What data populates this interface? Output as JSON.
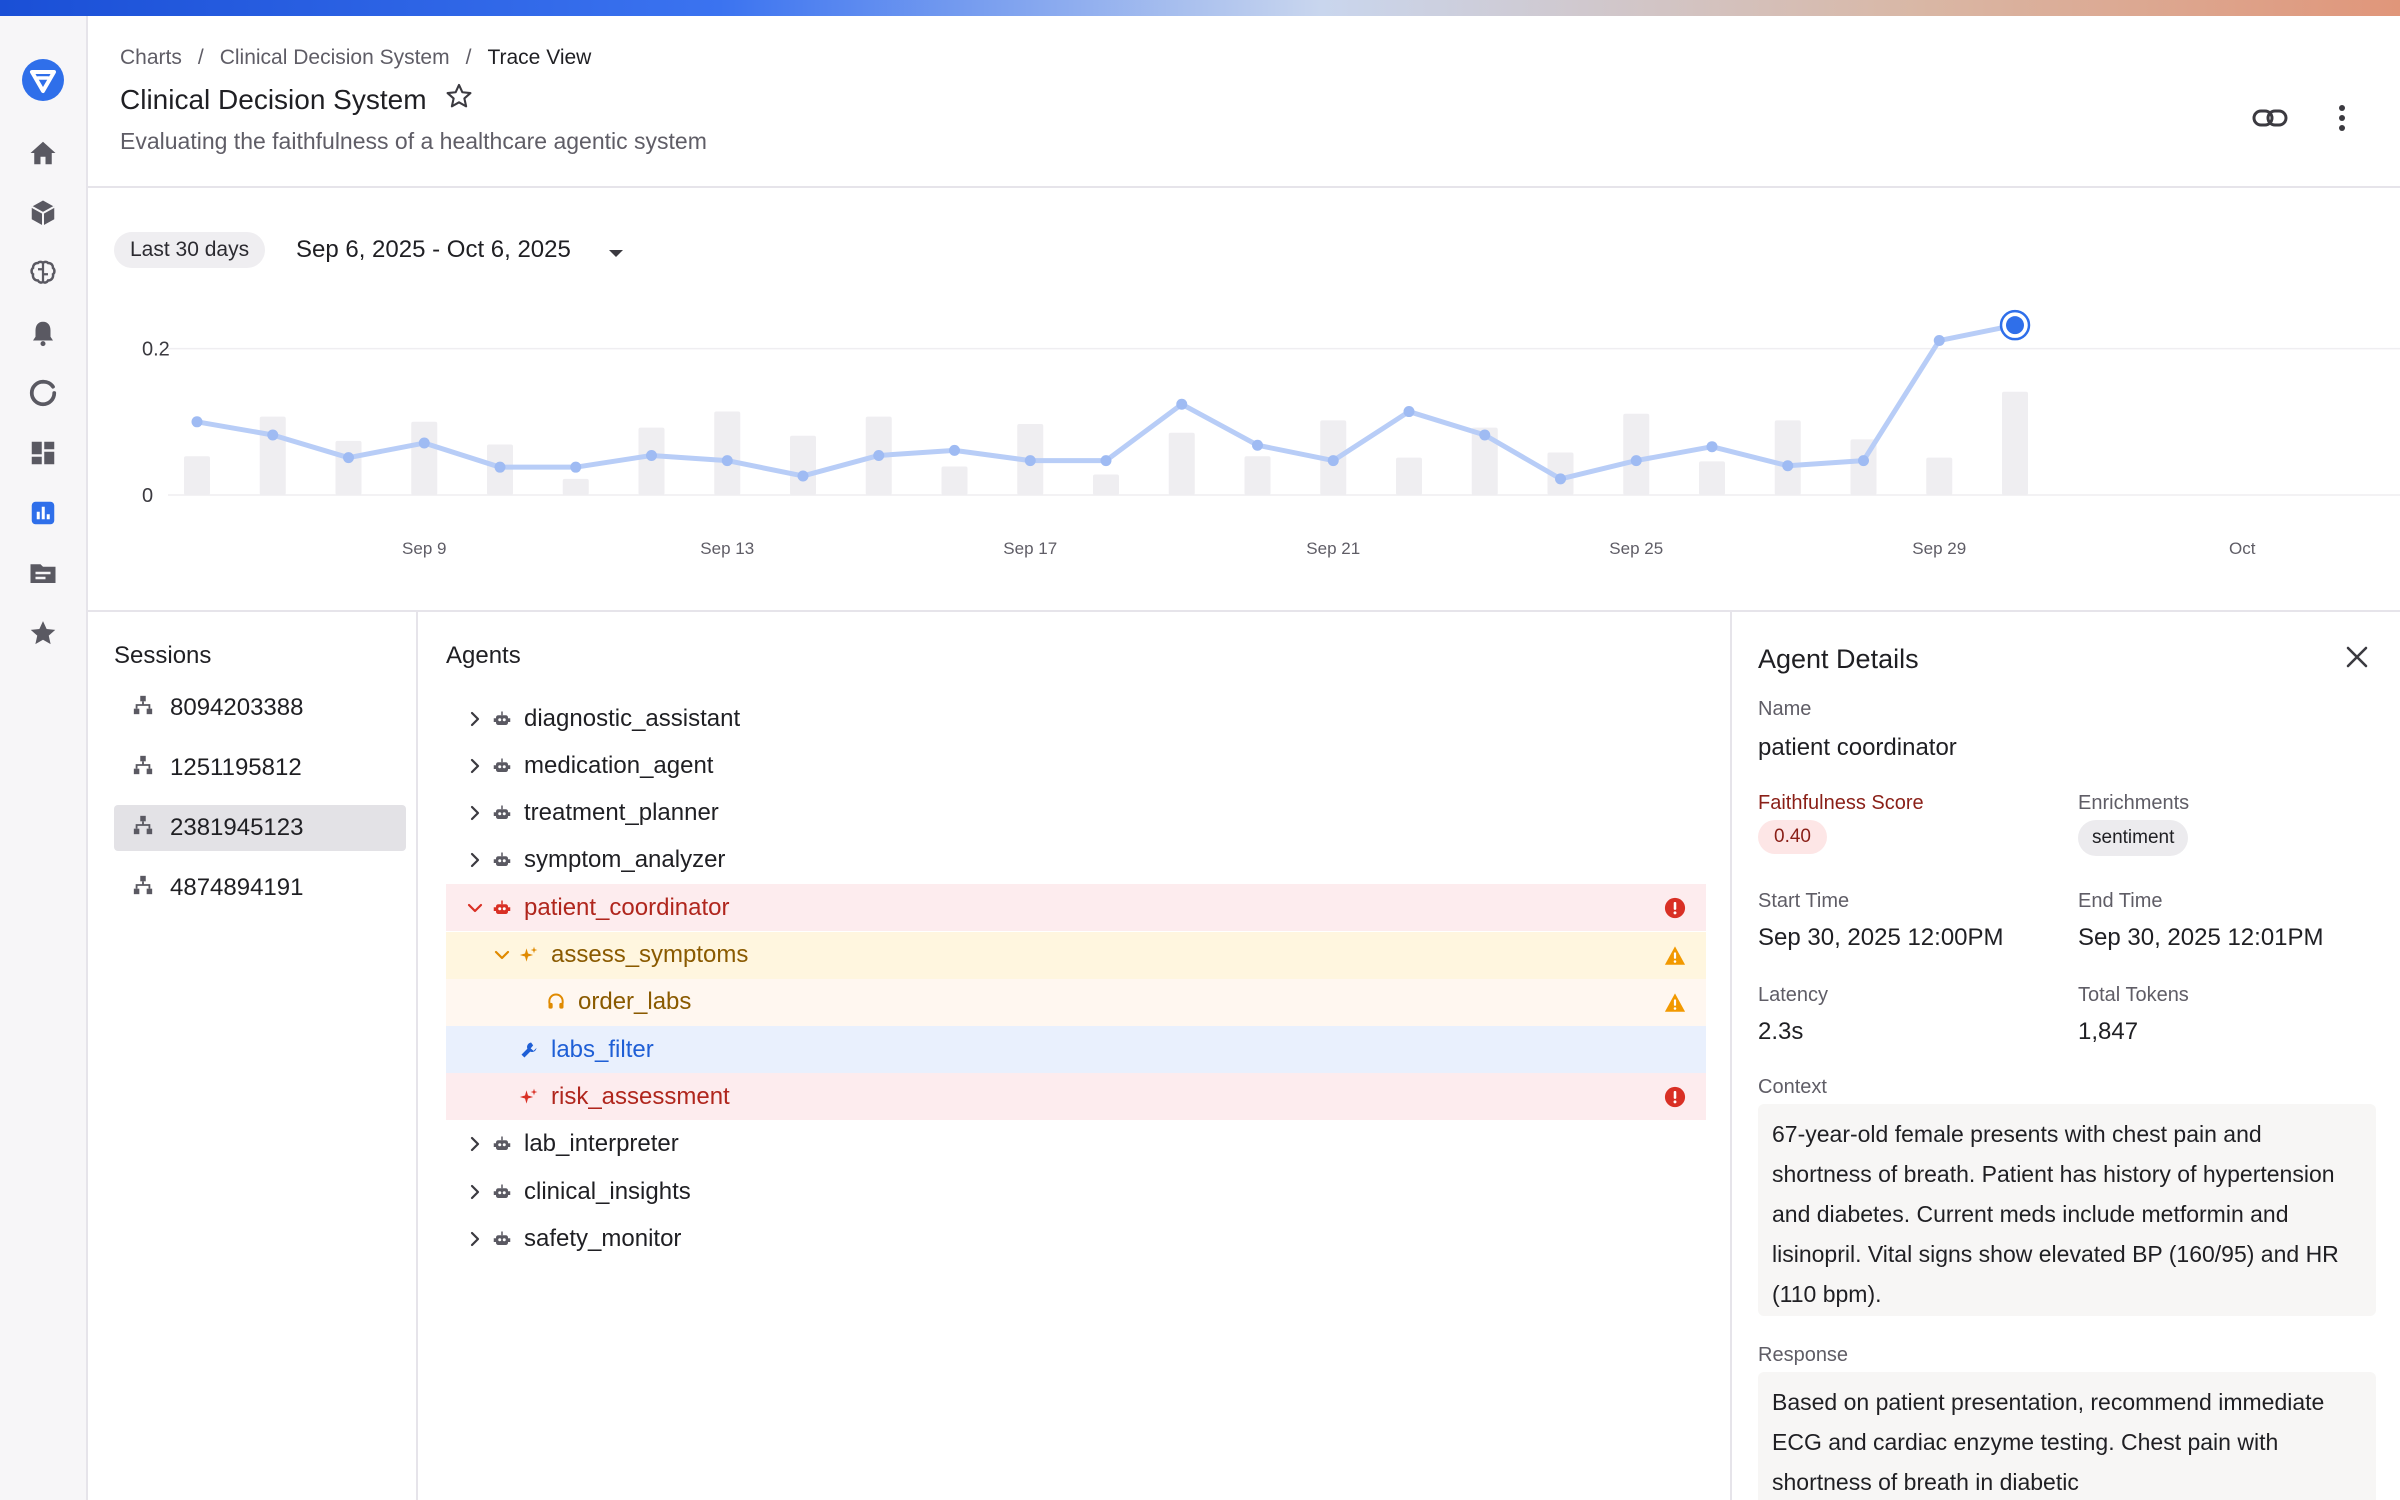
{
  "breadcrumb": {
    "items": [
      "Charts",
      "Clinical Decision System"
    ],
    "current": "Trace View"
  },
  "header": {
    "title": "Clinical Decision System",
    "subtitle": "Evaluating the faithfulness of a healthcare agentic system"
  },
  "nav_icons": [
    "home-icon",
    "cube-icon",
    "brain-icon",
    "bell-icon",
    "refresh-icon",
    "dashboard-icon",
    "chart-icon",
    "folder-icon",
    "star-icon"
  ],
  "date_range": {
    "chip": "Last 30 days",
    "range": "Sep 6, 2025 - Oct 6, 2025"
  },
  "chart_data": {
    "type": "line",
    "x": [
      "Sep 6",
      "Sep 7",
      "Sep 8",
      "Sep 9",
      "Sep 10",
      "Sep 11",
      "Sep 12",
      "Sep 13",
      "Sep 14",
      "Sep 15",
      "Sep 16",
      "Sep 17",
      "Sep 18",
      "Sep 19",
      "Sep 20",
      "Sep 21",
      "Sep 22",
      "Sep 23",
      "Sep 24",
      "Sep 25",
      "Sep 26",
      "Sep 27",
      "Sep 28",
      "Sep 29",
      "Sep 30"
    ],
    "series": [
      {
        "values": [
          0.1,
          0.082,
          0.051,
          0.071,
          0.038,
          0.038,
          0.054,
          0.047,
          0.026,
          0.054,
          0.061,
          0.047,
          0.047,
          0.124,
          0.068,
          0.047,
          0.114,
          0.082,
          0.022,
          0.047,
          0.066,
          0.04,
          0.047,
          0.211,
          0.232
        ]
      },
      {
        "values": [
          0.053,
          0.107,
          0.074,
          0.1,
          0.069,
          0.022,
          0.092,
          0.114,
          0.081,
          0.107,
          0.039,
          0.097,
          0.028,
          0.085,
          0.053,
          0.102,
          0.051,
          0.092,
          0.058,
          0.111,
          0.046,
          0.102,
          0.076,
          0.051,
          0.141
        ]
      }
    ],
    "y_ticks": [
      "0",
      "0.2"
    ],
    "x_ticks": [
      "Sep 9",
      "Sep 13",
      "Sep 17",
      "Sep 21",
      "Sep 25",
      "Sep 29",
      "Oct"
    ],
    "ylim": [
      0,
      0.25
    ],
    "highlight_index": 24,
    "line_color": "#b8cdf7",
    "bar_color": "#efeef1",
    "highlight_color": "#2f6fea",
    "grid": true
  },
  "sessions": {
    "title": "Sessions",
    "items": [
      "8094203388",
      "1251195812",
      "2381945123",
      "4874894191"
    ],
    "selected_index": 2
  },
  "agents": {
    "title": "Agents",
    "rows": [
      {
        "label": "diagnostic_assistant",
        "indent": 0,
        "chevron": "right",
        "icon": "robot-icon",
        "state": "none",
        "status": ""
      },
      {
        "label": "medication_agent",
        "indent": 0,
        "chevron": "right",
        "icon": "robot-icon",
        "state": "none",
        "status": ""
      },
      {
        "label": "treatment_planner",
        "indent": 0,
        "chevron": "right",
        "icon": "robot-icon",
        "state": "none",
        "status": ""
      },
      {
        "label": "symptom_analyzer",
        "indent": 0,
        "chevron": "right",
        "icon": "robot-icon",
        "state": "none",
        "status": ""
      },
      {
        "label": "patient_coordinator",
        "indent": 0,
        "chevron": "down",
        "icon": "robot-icon",
        "state": "red",
        "status": "error"
      },
      {
        "label": "assess_symptoms",
        "indent": 1,
        "chevron": "down",
        "icon": "sparkle-icon",
        "state": "yellow",
        "status": "warning"
      },
      {
        "label": "order_labs",
        "indent": 2,
        "chevron": "none",
        "icon": "headset-icon",
        "state": "peach",
        "status": "warning"
      },
      {
        "label": "labs_filter",
        "indent": 1,
        "chevron": "none",
        "icon": "wrench-icon",
        "state": "blue",
        "status": ""
      },
      {
        "label": "risk_assessment",
        "indent": 1,
        "chevron": "none",
        "icon": "sparkle-icon",
        "state": "red",
        "status": "error"
      },
      {
        "label": "lab_interpreter",
        "indent": 0,
        "chevron": "right",
        "icon": "robot-icon",
        "state": "none",
        "status": ""
      },
      {
        "label": "clinical_insights",
        "indent": 0,
        "chevron": "right",
        "icon": "robot-icon",
        "state": "none",
        "status": ""
      },
      {
        "label": "safety_monitor",
        "indent": 0,
        "chevron": "right",
        "icon": "robot-icon",
        "state": "none",
        "status": ""
      }
    ],
    "colors": {
      "error": "#d93025",
      "warning": "#f29900"
    }
  },
  "details": {
    "title": "Agent Details",
    "name_label": "Name",
    "name_value": "patient coordinator",
    "score_label": "Faithfulness Score",
    "score_value": "0.40",
    "enrich_label": "Enrichments",
    "enrich_value": "sentiment",
    "start_label": "Start Time",
    "start_value": "Sep 30, 2025 12:00PM",
    "end_label": "End Time",
    "end_value": "Sep 30, 2025 12:01PM",
    "latency_label": "Latency",
    "latency_value": "2.3s",
    "tokens_label": "Total Tokens",
    "tokens_value": "1,847",
    "context_label": "Context",
    "context_value": "67-year-old female presents with chest pain and shortness of breath. Patient has history of hypertension and diabetes. Current meds include metformin and lisinopril. Vital signs show elevated BP (160/95) and HR (110 bpm).",
    "response_label": "Response",
    "response_value": "Based on patient presentation, recommend immediate ECG and cardiac enzyme testing. Chest pain with shortness of breath in diabetic"
  }
}
